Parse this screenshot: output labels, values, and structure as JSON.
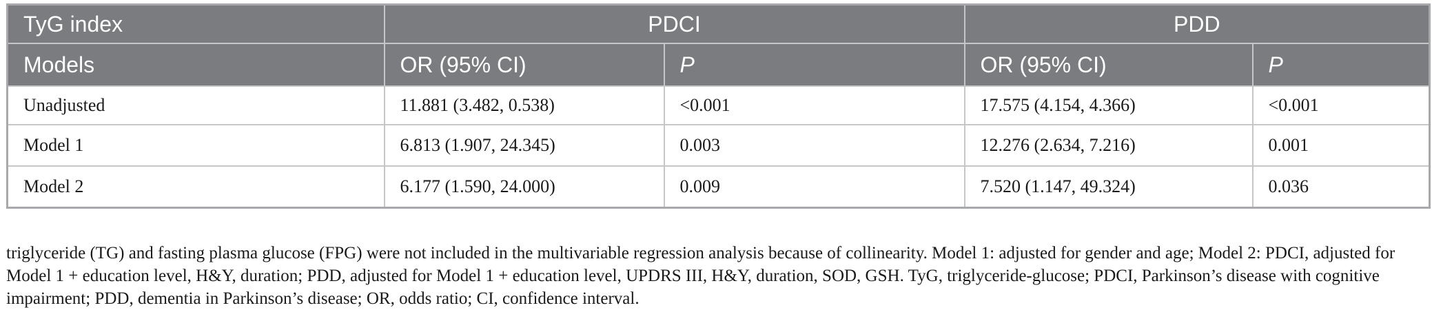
{
  "table": {
    "header_group": {
      "first": "TyG index",
      "group1": "PDCI",
      "group2": "PDD"
    },
    "header_cols": [
      "Models",
      "OR (95% CI)",
      "P",
      "OR (95% CI)",
      "P"
    ],
    "rows": [
      [
        "Unadjusted",
        "11.881 (3.482, 0.538)",
        "<0.001",
        "17.575 (4.154, 4.366)",
        "<0.001"
      ],
      [
        "Model 1",
        "6.813 (1.907, 24.345)",
        "0.003",
        "12.276 (2.634, 7.216)",
        "0.001"
      ],
      [
        "Model 2",
        "6.177 (1.590, 24.000)",
        "0.009",
        "7.520 (1.147, 49.324)",
        "0.036"
      ]
    ]
  },
  "footnote": "triglyceride (TG) and fasting plasma glucose (FPG) were not included in the multivariable regression analysis because of collinearity. Model 1: adjusted for gender and age; Model 2: PDCI, adjusted for Model 1 + education level, H&Y, duration; PDD, adjusted for Model 1 + education level, UPDRS III, H&Y, duration, SOD, GSH. TyG, triglyceride-glucose; PDCI, Parkinson’s disease with cognitive impairment; PDD, dementia in Parkinson’s disease; OR, odds ratio; CI, confidence interval."
}
